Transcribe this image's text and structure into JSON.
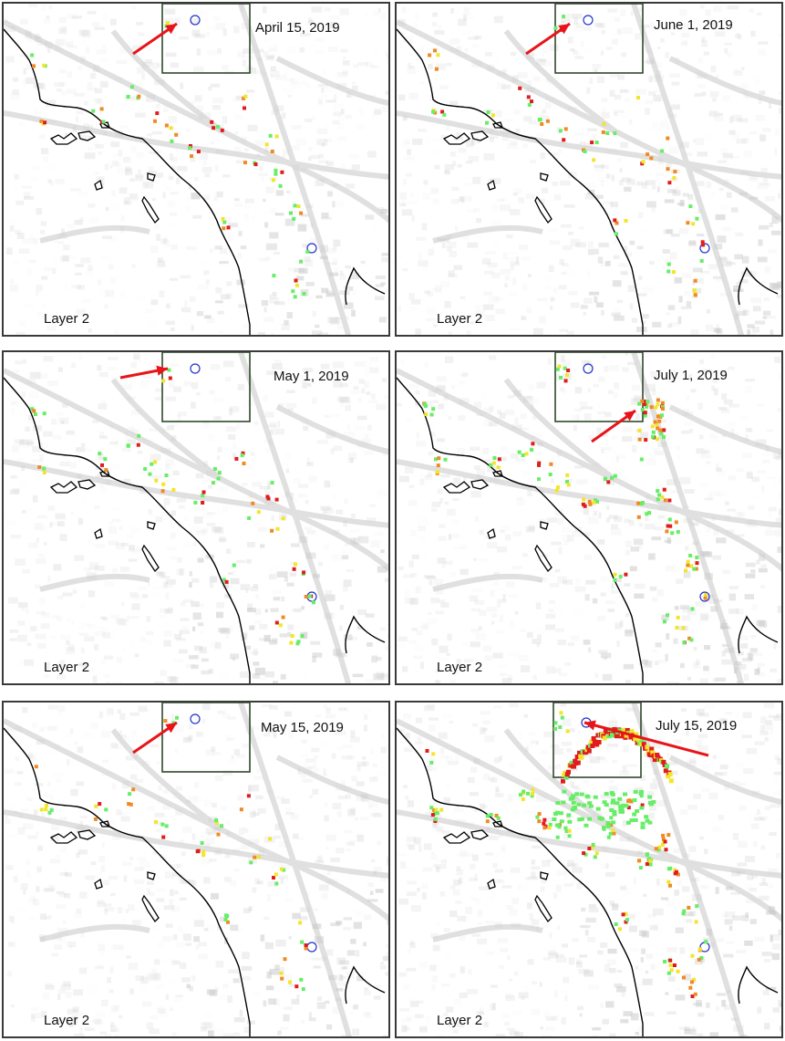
{
  "figure": {
    "layer_label": "Layer 2",
    "colors": {
      "background_gray": "#c8c8c8",
      "coast": "#000000",
      "inset_box": "#2f4a2a",
      "marker_circle": "#2233cc",
      "arrow": "#e8141a",
      "pixel_red": "#e21c1c",
      "pixel_orange": "#f08a24",
      "pixel_yellow": "#f3e52a",
      "pixel_green": "#66ee66"
    },
    "panels": [
      {
        "id": "p-apr15",
        "date": "April 15, 2019",
        "arrow": "up-right",
        "activity": "low"
      },
      {
        "id": "p-jun1",
        "date": "June 1, 2019",
        "arrow": "up-right",
        "activity": "low"
      },
      {
        "id": "p-may1",
        "date": "May 1, 2019",
        "arrow": "right",
        "activity": "low"
      },
      {
        "id": "p-jul1",
        "date": "July 1, 2019",
        "arrow": "up-right-below",
        "activity": "medium"
      },
      {
        "id": "p-may15",
        "date": "May 15, 2019",
        "arrow": "up-right",
        "activity": "low"
      },
      {
        "id": "p-jul15",
        "date": "July 15, 2019",
        "arrow": "left",
        "activity": "high"
      }
    ]
  }
}
